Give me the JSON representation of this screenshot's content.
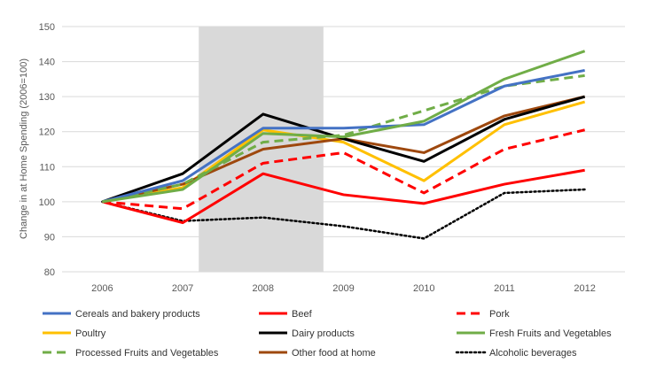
{
  "chart_data": {
    "type": "line",
    "ylabel": "Change in at Home Spending (2006=100)",
    "xlabel": "",
    "title": "",
    "x": [
      "2006",
      "2007",
      "2008",
      "2009",
      "2010",
      "2011",
      "2012"
    ],
    "ylim": [
      80,
      150
    ],
    "yticks": [
      80,
      90,
      100,
      110,
      120,
      130,
      140,
      150
    ],
    "grid": "horizontal",
    "legend_position": "bottom",
    "shaded_region": {
      "x_start": 2007.2,
      "x_end": 2008.75,
      "color": "#d9d9d9"
    },
    "series": [
      {
        "name": "Cereals and bakery products",
        "color": "#4472c4",
        "style": "solid",
        "values": [
          100,
          106,
          121,
          121,
          122,
          133,
          137.5
        ]
      },
      {
        "name": "Beef",
        "color": "#ff0000",
        "style": "solid",
        "values": [
          100,
          94,
          108,
          102,
          99.5,
          105,
          109
        ]
      },
      {
        "name": "Pork",
        "color": "#ff0000",
        "style": "dashed",
        "values": [
          100,
          98,
          111,
          114,
          102.5,
          115,
          120.5
        ]
      },
      {
        "name": "Poultry",
        "color": "#ffc000",
        "style": "solid",
        "values": [
          100,
          104,
          120.5,
          117,
          106,
          122,
          128.5
        ]
      },
      {
        "name": "Dairy products",
        "color": "#000000",
        "style": "solid",
        "values": [
          100,
          108,
          125,
          118,
          111.5,
          123.5,
          130
        ]
      },
      {
        "name": "Fresh Fruits and Vegetables",
        "color": "#70ad47",
        "style": "solid",
        "values": [
          100,
          103.5,
          119.5,
          118.5,
          123,
          135,
          143
        ]
      },
      {
        "name": "Processed Fruits and Vegetables",
        "color": "#70ad47",
        "style": "dashed",
        "values": [
          100,
          105,
          117,
          119,
          126,
          133,
          136
        ]
      },
      {
        "name": "Other food at home",
        "color": "#9e480e",
        "style": "solid",
        "values": [
          100,
          105,
          115,
          118,
          114,
          124.5,
          130
        ]
      },
      {
        "name": "Alcoholic beverages",
        "color": "#000000",
        "style": "dotted",
        "values": [
          100,
          94.5,
          95.5,
          93,
          89.5,
          102.5,
          103.5
        ]
      }
    ]
  }
}
